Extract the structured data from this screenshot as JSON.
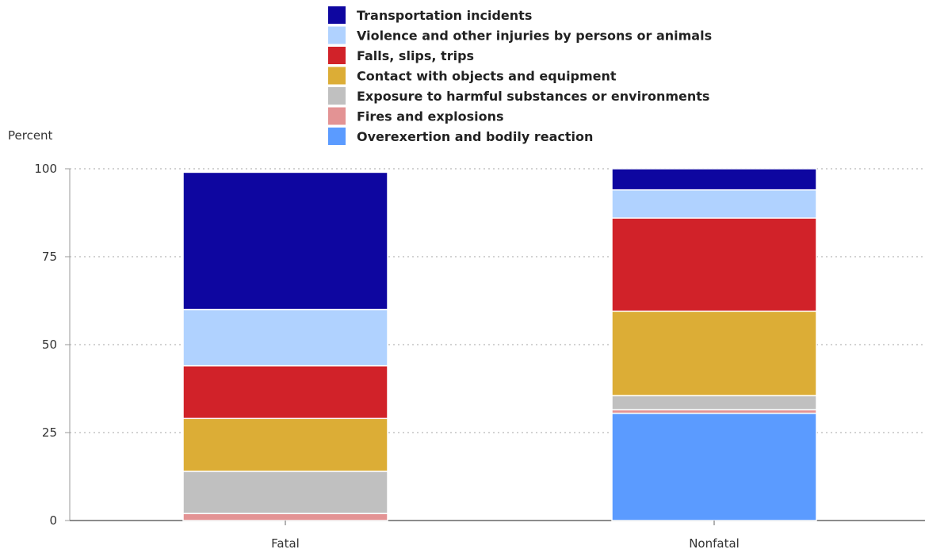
{
  "chart_data": {
    "type": "bar",
    "stacked": true,
    "ylabel": "Percent",
    "ylim": [
      0,
      100
    ],
    "yticks": [
      0,
      25,
      50,
      75,
      100
    ],
    "grid": true,
    "legend_position": "top",
    "categories": [
      "Fatal",
      "Nonfatal"
    ],
    "series": [
      {
        "name": "Overexertion and bodily reaction",
        "color": "#5b9bff",
        "values": [
          0,
          30.5
        ]
      },
      {
        "name": "Fires and explosions",
        "color": "#e39394",
        "values": [
          2,
          1
        ]
      },
      {
        "name": "Exposure to harmful substances or environments",
        "color": "#c0c0c0",
        "values": [
          12,
          4
        ]
      },
      {
        "name": "Contact with objects and equipment",
        "color": "#dcad36",
        "values": [
          15,
          24
        ]
      },
      {
        "name": "Falls, slips, trips",
        "color": "#d12229",
        "values": [
          15,
          26.5
        ]
      },
      {
        "name": "Violence and other injuries by persons or animals",
        "color": "#b0d2ff",
        "values": [
          16,
          8
        ]
      },
      {
        "name": "Transportation incidents",
        "color": "#0e06a0",
        "values": [
          39,
          6
        ]
      }
    ]
  }
}
